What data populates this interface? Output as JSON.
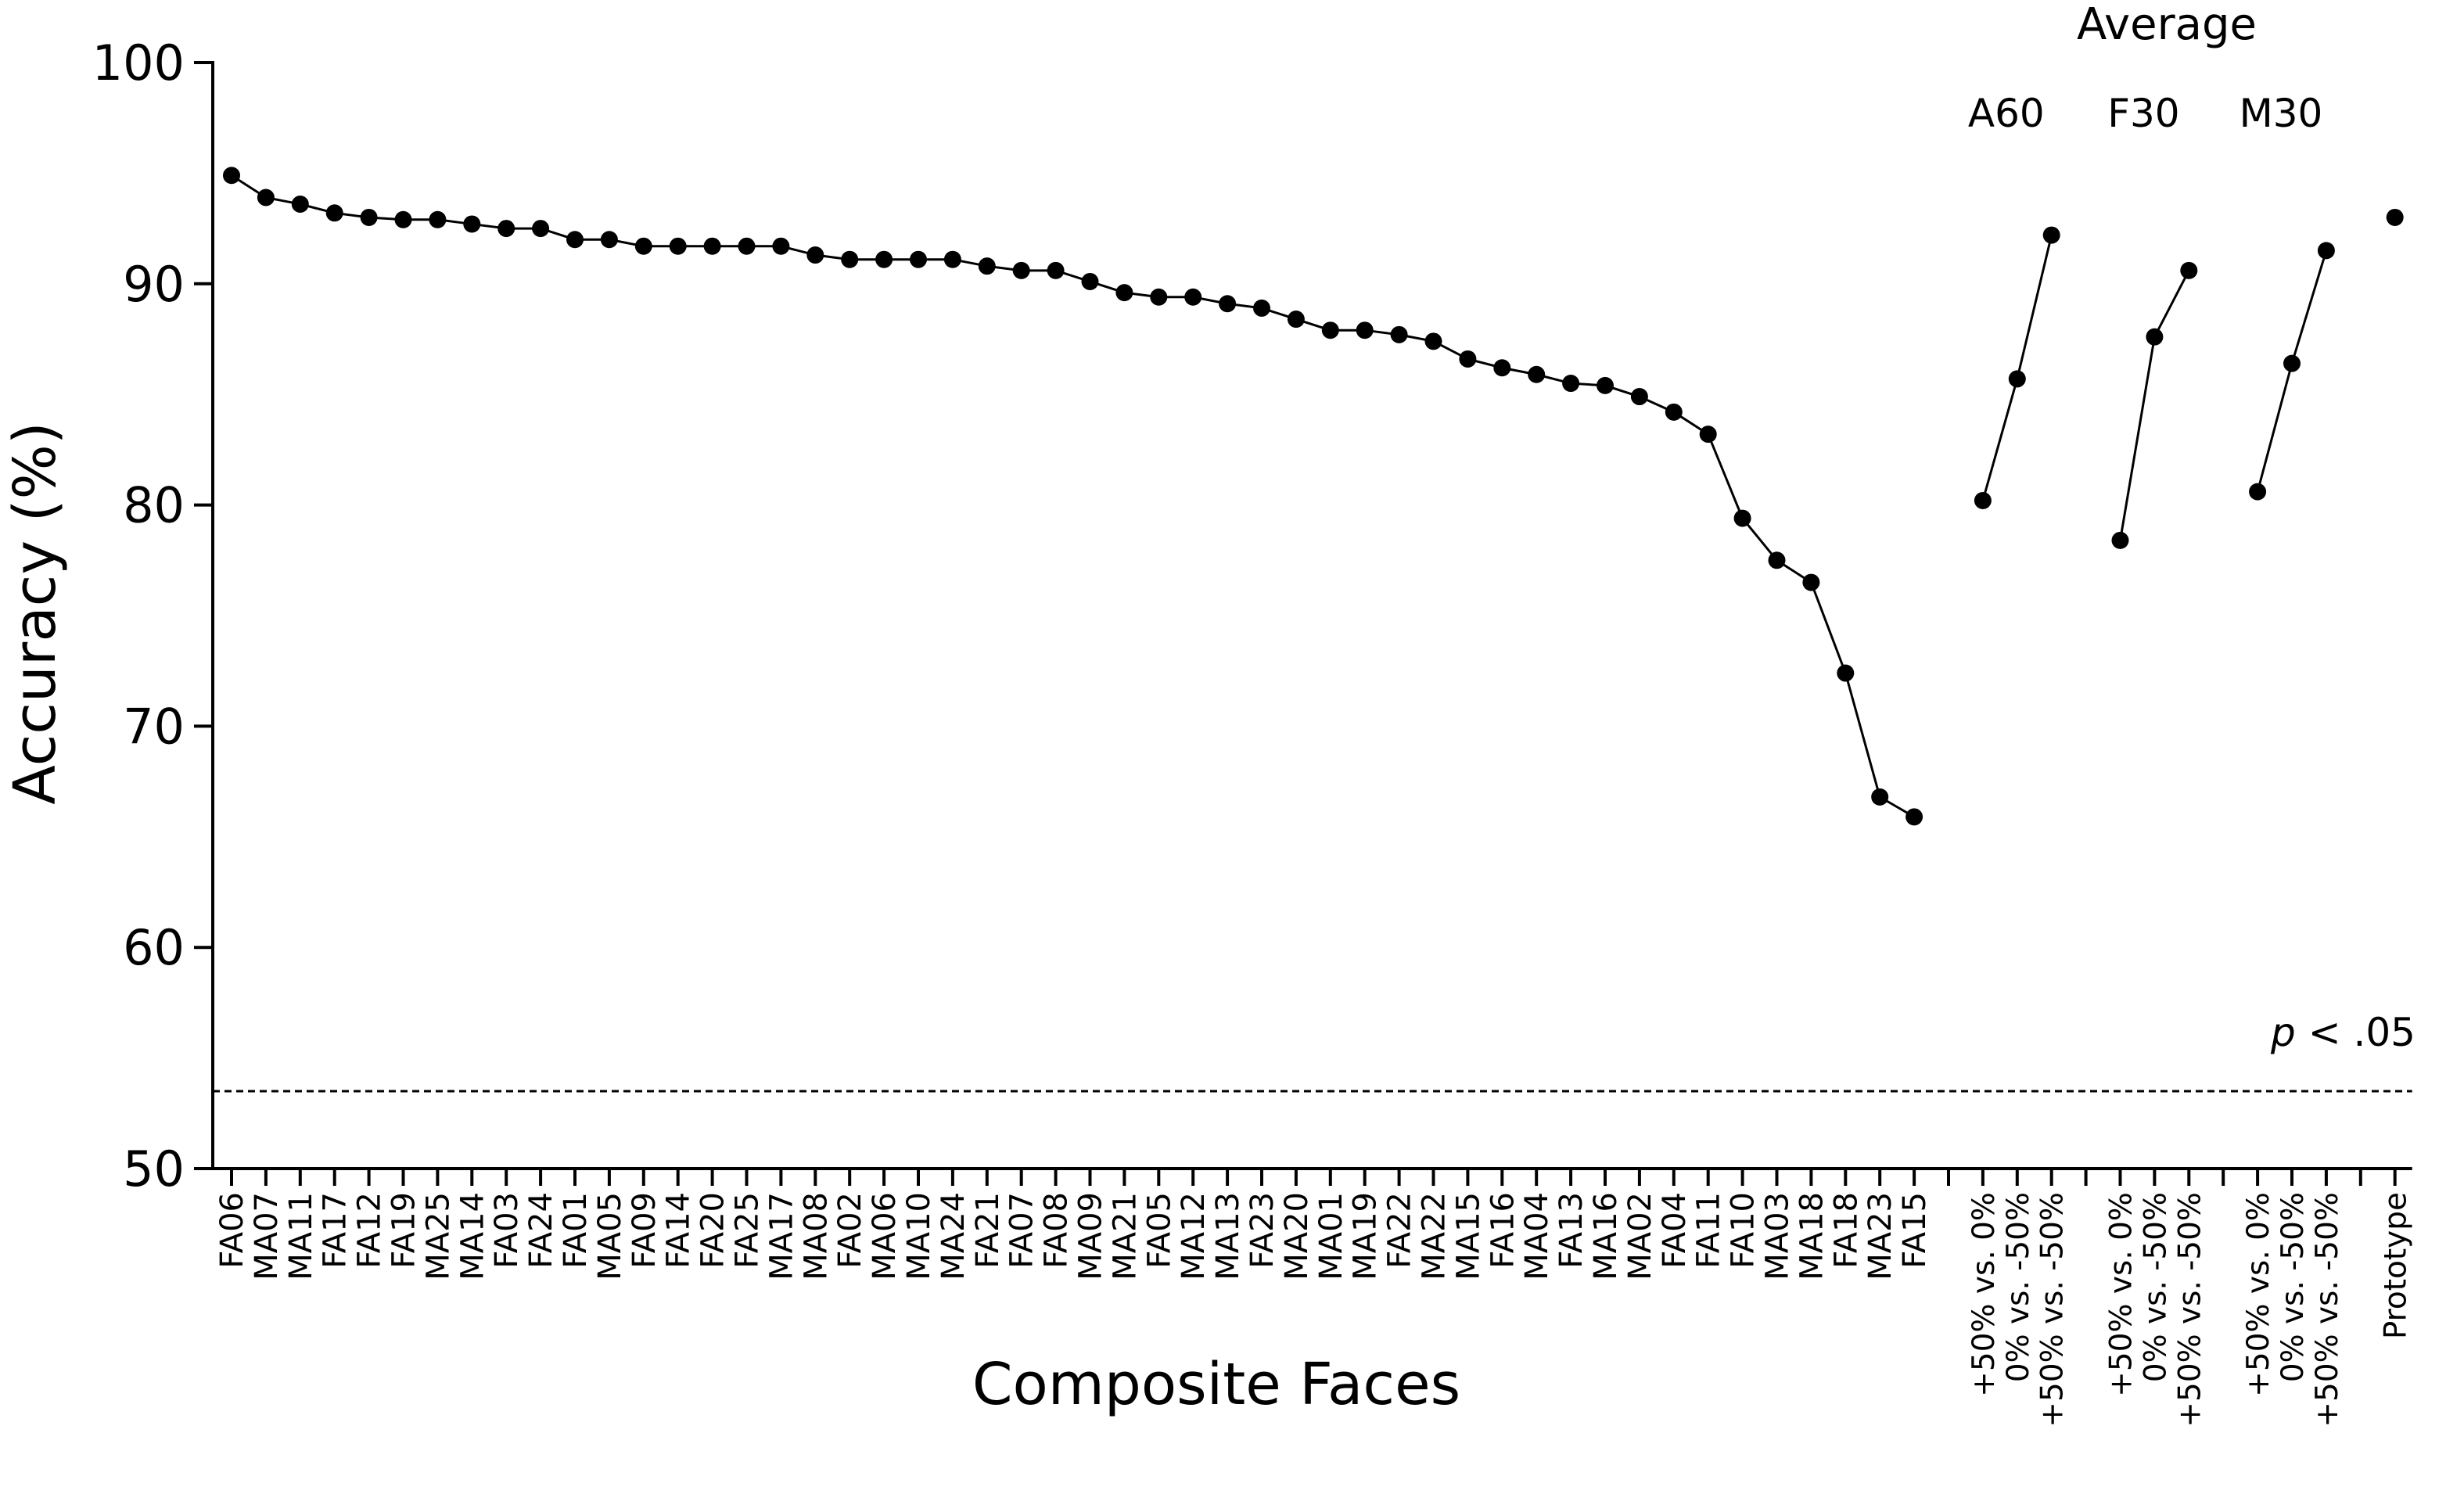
{
  "chart_data": {
    "type": "line",
    "xlabel": "Composite Faces",
    "ylabel": "Accuracy (%)",
    "ylim": [
      50,
      100
    ],
    "yticks": [
      50,
      60,
      70,
      80,
      90,
      100
    ],
    "grid": false,
    "series": [
      {
        "categories": [
          "FA06",
          "MA07",
          "MA11",
          "FA17",
          "FA12",
          "FA19",
          "MA25",
          "MA14",
          "FA03",
          "FA24",
          "FA01",
          "MA05",
          "FA09",
          "FA14",
          "FA20",
          "FA25",
          "MA17",
          "MA08",
          "FA02",
          "MA06",
          "MA10",
          "MA24",
          "FA21",
          "FA07",
          "FA08",
          "MA09",
          "MA21",
          "FA05",
          "MA12",
          "MA13",
          "FA23",
          "MA20",
          "MA01",
          "MA19",
          "FA22",
          "MA22",
          "MA15",
          "FA16",
          "MA04",
          "FA13",
          "MA16",
          "MA02",
          "FA04",
          "FA11",
          "FA10",
          "MA03",
          "MA18",
          "FA18",
          "MA23",
          "FA15"
        ],
        "values": [
          94.9,
          93.9,
          93.6,
          93.2,
          93.0,
          92.9,
          92.9,
          92.7,
          92.5,
          92.5,
          92.0,
          92.0,
          91.7,
          91.7,
          91.7,
          91.7,
          91.7,
          91.3,
          91.1,
          91.1,
          91.1,
          91.1,
          90.8,
          90.6,
          90.6,
          90.1,
          89.6,
          89.4,
          89.4,
          89.1,
          88.9,
          88.4,
          87.9,
          87.9,
          87.7,
          87.4,
          86.6,
          86.2,
          85.9,
          85.5,
          85.4,
          84.9,
          84.2,
          83.2,
          79.4,
          77.5,
          76.5,
          72.4,
          66.8,
          65.9
        ]
      }
    ],
    "average": {
      "title": "Average",
      "groups": [
        {
          "name": "A60",
          "conditions": [
            "+50% vs. 0%",
            "0% vs. -50%",
            "+50% vs. -50%"
          ],
          "values": [
            80.2,
            85.7,
            92.2
          ]
        },
        {
          "name": "F30",
          "conditions": [
            "+50% vs. 0%",
            "0% vs. -50%",
            "+50% vs. -50%"
          ],
          "values": [
            78.4,
            87.6,
            90.6
          ]
        },
        {
          "name": "M30",
          "conditions": [
            "+50% vs. 0%",
            "0% vs. -50%",
            "+50% vs. -50%"
          ],
          "values": [
            80.6,
            86.4,
            91.5
          ]
        }
      ],
      "prototype": {
        "label": "Prototype",
        "value": 93.0
      }
    },
    "significance": {
      "value": 53.5,
      "label_italic": "p",
      "label_rest": " < .05"
    }
  }
}
